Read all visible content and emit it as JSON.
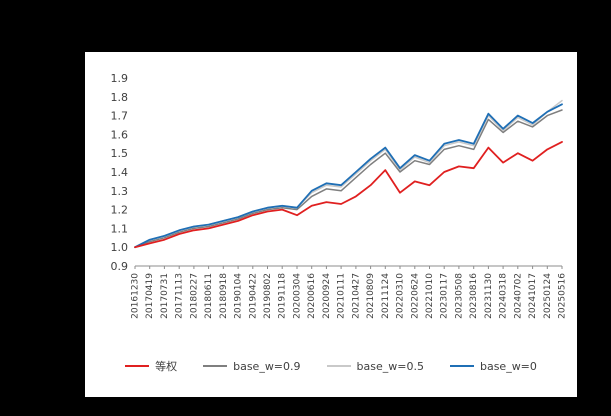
{
  "page": {
    "background_color": "#000000",
    "chart_background_color": "#ffffff"
  },
  "chart_data": {
    "type": "line",
    "title": "",
    "xlabel": "",
    "ylabel": "",
    "grid": false,
    "legend_position": "bottom",
    "ylim": [
      0.9,
      1.9
    ],
    "ytick_step": 0.1,
    "x_labels": [
      "20161230",
      "20170419",
      "20170731",
      "20171113",
      "20180227",
      "20180611",
      "20180918",
      "20190104",
      "20190422",
      "20190802",
      "20191118",
      "20200304",
      "20200616",
      "20200924",
      "20210111",
      "20210427",
      "20210809",
      "20211124",
      "20220310",
      "20220624",
      "20221010",
      "20230117",
      "20230508",
      "20230816",
      "20231130",
      "20240318",
      "20240702",
      "20241017",
      "20250124",
      "20250516"
    ],
    "series": [
      {
        "name": "等权",
        "color": "#e02020",
        "width": 1.8,
        "z": 4,
        "values": [
          1.0,
          1.02,
          1.04,
          1.07,
          1.09,
          1.1,
          1.12,
          1.14,
          1.17,
          1.19,
          1.2,
          1.17,
          1.22,
          1.24,
          1.23,
          1.27,
          1.33,
          1.41,
          1.29,
          1.35,
          1.33,
          1.4,
          1.43,
          1.42,
          1.53,
          1.45,
          1.5,
          1.46,
          1.52,
          1.56
        ]
      },
      {
        "name": "base_w=0.9",
        "color": "#7f7f7f",
        "width": 1.5,
        "z": 2,
        "values": [
          1.0,
          1.03,
          1.05,
          1.08,
          1.1,
          1.11,
          1.13,
          1.15,
          1.18,
          1.2,
          1.21,
          1.2,
          1.27,
          1.31,
          1.3,
          1.37,
          1.44,
          1.5,
          1.4,
          1.46,
          1.44,
          1.52,
          1.54,
          1.52,
          1.68,
          1.61,
          1.67,
          1.64,
          1.7,
          1.73
        ]
      },
      {
        "name": "base_w=0.5",
        "color": "#c9c9c9",
        "width": 1.5,
        "z": 1,
        "values": [
          1.0,
          1.04,
          1.06,
          1.09,
          1.11,
          1.12,
          1.14,
          1.16,
          1.19,
          1.21,
          1.22,
          1.21,
          1.29,
          1.33,
          1.32,
          1.39,
          1.46,
          1.52,
          1.41,
          1.48,
          1.45,
          1.54,
          1.56,
          1.54,
          1.7,
          1.62,
          1.69,
          1.65,
          1.72,
          1.78
        ]
      },
      {
        "name": "base_w=0",
        "color": "#1f6fb5",
        "width": 1.8,
        "z": 3,
        "values": [
          1.0,
          1.04,
          1.06,
          1.09,
          1.11,
          1.12,
          1.14,
          1.16,
          1.19,
          1.21,
          1.22,
          1.21,
          1.3,
          1.34,
          1.33,
          1.4,
          1.47,
          1.53,
          1.42,
          1.49,
          1.46,
          1.55,
          1.57,
          1.55,
          1.71,
          1.63,
          1.7,
          1.66,
          1.72,
          1.76
        ]
      }
    ]
  }
}
